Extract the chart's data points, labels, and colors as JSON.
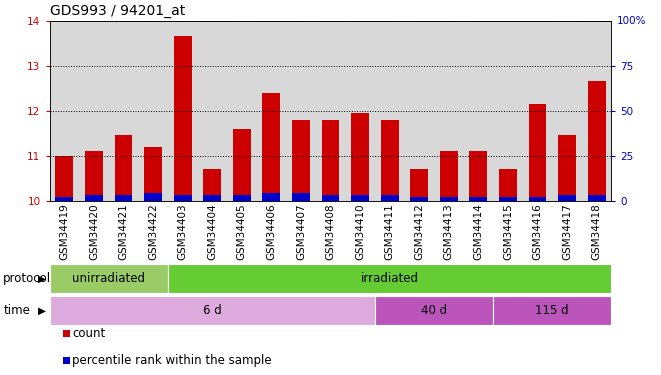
{
  "title": "GDS993 / 94201_at",
  "samples": [
    "GSM34419",
    "GSM34420",
    "GSM34421",
    "GSM34422",
    "GSM34403",
    "GSM34404",
    "GSM34405",
    "GSM34406",
    "GSM34407",
    "GSM34408",
    "GSM34410",
    "GSM34411",
    "GSM34412",
    "GSM34413",
    "GSM34414",
    "GSM34415",
    "GSM34416",
    "GSM34417",
    "GSM34418"
  ],
  "count_values": [
    11.0,
    11.1,
    11.45,
    11.2,
    13.65,
    10.7,
    11.6,
    12.4,
    11.8,
    11.8,
    11.95,
    11.8,
    10.7,
    11.1,
    11.1,
    10.7,
    12.15,
    11.45,
    12.65
  ],
  "percentile_values": [
    2,
    3,
    3,
    4,
    3,
    3,
    3,
    4,
    4,
    3,
    3,
    3,
    2,
    2,
    2,
    2,
    2,
    3,
    3
  ],
  "ymin": 10,
  "ymax": 14,
  "yticks_left": [
    10,
    11,
    12,
    13,
    14
  ],
  "yticks_right": [
    0,
    25,
    50,
    75,
    100
  ],
  "bar_color_red": "#cc0000",
  "bar_color_blue": "#0000cc",
  "bg_color": "#d8d8d8",
  "protocol_groups": [
    {
      "label": "unirradiated",
      "start": 0,
      "end": 4,
      "color": "#99cc66"
    },
    {
      "label": "irradiated",
      "start": 4,
      "end": 19,
      "color": "#66cc33"
    }
  ],
  "time_groups": [
    {
      "label": "6 d",
      "start": 0,
      "end": 11,
      "color": "#ddaadd"
    },
    {
      "label": "40 d",
      "start": 11,
      "end": 15,
      "color": "#bb55bb"
    },
    {
      "label": "115 d",
      "start": 15,
      "end": 19,
      "color": "#bb55bb"
    }
  ],
  "legend_count_label": "count",
  "legend_percentile_label": "percentile rank within the sample",
  "axis_color_left": "#cc0000",
  "axis_color_right": "#0000cc",
  "grid_color": "#000000",
  "title_fontsize": 10,
  "tick_fontsize": 7.5,
  "label_fontsize": 8.5,
  "row_label_fontsize": 8.5
}
